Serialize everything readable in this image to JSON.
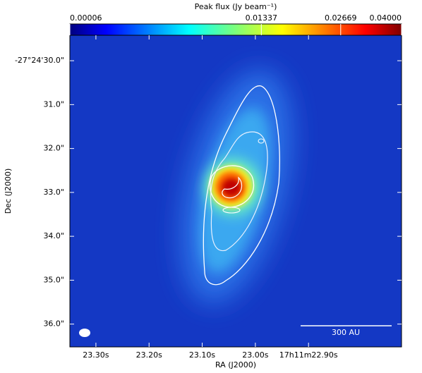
{
  "chart_data": {
    "type": "image",
    "colorbar": {
      "label": "Peak flux (Jy beam⁻¹)",
      "lim": [
        6e-05,
        0.04
      ],
      "stretch": "sqrt",
      "colormap": "jet",
      "ticks": [
        6e-05,
        0.01337,
        0.02669,
        {
          "value": 0.04,
          "label": "0.04000"
        }
      ]
    },
    "xlabel": "RA (J2000)",
    "ylabel": "Dec (J2000)",
    "xlim": [
      23.349,
      22.725
    ],
    "xticks": [
      {
        "value": 23.3,
        "label": "23.30s"
      },
      {
        "value": 23.2,
        "label": "23.20s"
      },
      {
        "value": 23.1,
        "label": "23.10s"
      },
      {
        "value": 23.0,
        "label": "23.00s"
      },
      {
        "value": 22.9,
        "label": "17h11m22.90s"
      }
    ],
    "ylim": [
      36.52,
      29.42
    ],
    "yticks": [
      {
        "value": 30,
        "label": "-27°24'30.0\""
      },
      {
        "value": 31,
        "label": "31.0\""
      },
      {
        "value": 32,
        "label": "32.0\""
      },
      {
        "value": 33,
        "label": "33.0\""
      },
      {
        "value": 34,
        "label": "34.0\""
      },
      {
        "value": 35,
        "label": "35.0\""
      },
      {
        "value": 36,
        "label": "36.0\""
      }
    ],
    "scale_bar": {
      "label": "300 AU"
    }
  }
}
